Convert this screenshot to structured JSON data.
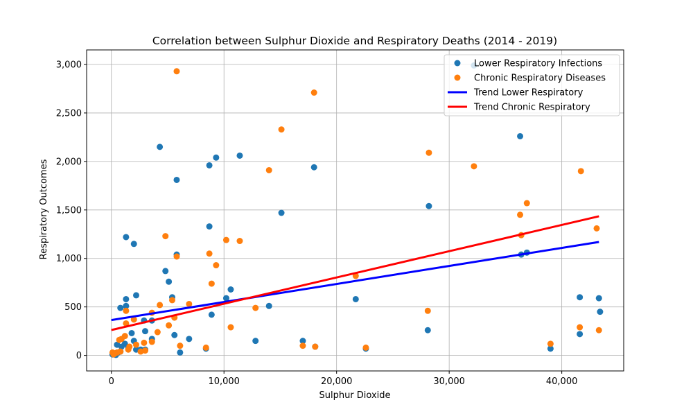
{
  "chart_data": {
    "type": "scatter",
    "title": "Correlation between Sulphur Dioxide and Respiratory Deaths (2014 - 2019)",
    "xlabel": "Sulphur Dioxide",
    "ylabel": "Respiratory Outcomes",
    "xlim": [
      -2200,
      45500
    ],
    "ylim": [
      -160,
      3150
    ],
    "xticks": [
      0,
      10000,
      20000,
      30000,
      40000
    ],
    "xtick_labels": [
      "0",
      "10,000",
      "20,000",
      "30,000",
      "40,000"
    ],
    "yticks": [
      0,
      500,
      1000,
      1500,
      2000,
      2500,
      3000
    ],
    "ytick_labels": [
      "0",
      "500",
      "1,000",
      "1,500",
      "2,000",
      "2,500",
      "3,000"
    ],
    "grid": true,
    "legend_position": "top-right",
    "series": [
      {
        "name": "Lower Respiratory Infections",
        "kind": "scatter",
        "color": "#1f77b4",
        "points": [
          [
            4300,
            2150
          ],
          [
            5800,
            1810
          ],
          [
            8700,
            1960
          ],
          [
            9300,
            2040
          ],
          [
            11400,
            2060
          ],
          [
            18000,
            1940
          ],
          [
            36300,
            2260
          ],
          [
            32200,
            2990
          ],
          [
            1300,
            1220
          ],
          [
            2000,
            1150
          ],
          [
            5800,
            1040
          ],
          [
            8700,
            1330
          ],
          [
            15100,
            1470
          ],
          [
            28200,
            1540
          ],
          [
            36400,
            1040
          ],
          [
            36900,
            1060
          ],
          [
            4800,
            870
          ],
          [
            5100,
            760
          ],
          [
            5400,
            600
          ],
          [
            10200,
            590
          ],
          [
            10600,
            680
          ],
          [
            14000,
            510
          ],
          [
            21700,
            580
          ],
          [
            41600,
            600
          ],
          [
            43300,
            590
          ],
          [
            43400,
            450
          ],
          [
            1300,
            580
          ],
          [
            1300,
            510
          ],
          [
            800,
            490
          ],
          [
            2200,
            620
          ],
          [
            8900,
            420
          ],
          [
            5600,
            210
          ],
          [
            6900,
            170
          ],
          [
            12800,
            150
          ],
          [
            17000,
            150
          ],
          [
            18100,
            90
          ],
          [
            22600,
            70
          ],
          [
            28100,
            260
          ],
          [
            39000,
            70
          ],
          [
            41600,
            220
          ],
          [
            6100,
            30
          ],
          [
            8400,
            70
          ],
          [
            2900,
            360
          ],
          [
            3600,
            360
          ],
          [
            1800,
            230
          ],
          [
            3000,
            250
          ],
          [
            3600,
            170
          ],
          [
            2600,
            60
          ],
          [
            3000,
            60
          ],
          [
            2000,
            150
          ],
          [
            1200,
            120
          ],
          [
            500,
            110
          ],
          [
            900,
            90
          ],
          [
            1500,
            80
          ],
          [
            2200,
            60
          ],
          [
            800,
            40
          ],
          [
            300,
            20
          ],
          [
            100,
            10
          ],
          [
            600,
            30
          ],
          [
            400,
            5
          ]
        ]
      },
      {
        "name": "Chronic Respiratory Diseases",
        "kind": "scatter",
        "color": "#ff7f0e",
        "points": [
          [
            5800,
            2930
          ],
          [
            18000,
            2710
          ],
          [
            15100,
            2330
          ],
          [
            28200,
            2090
          ],
          [
            14000,
            1910
          ],
          [
            32200,
            1950
          ],
          [
            41700,
            1900
          ],
          [
            36900,
            1570
          ],
          [
            36300,
            1450
          ],
          [
            36400,
            1240
          ],
          [
            43100,
            1310
          ],
          [
            4800,
            1230
          ],
          [
            10200,
            1190
          ],
          [
            11400,
            1180
          ],
          [
            8700,
            1050
          ],
          [
            5800,
            1020
          ],
          [
            9300,
            930
          ],
          [
            8900,
            740
          ],
          [
            21700,
            820
          ],
          [
            5400,
            570
          ],
          [
            4300,
            520
          ],
          [
            6900,
            530
          ],
          [
            12800,
            490
          ],
          [
            1300,
            460
          ],
          [
            28100,
            460
          ],
          [
            2000,
            370
          ],
          [
            3600,
            440
          ],
          [
            5600,
            390
          ],
          [
            1300,
            330
          ],
          [
            5100,
            310
          ],
          [
            10600,
            290
          ],
          [
            41600,
            290
          ],
          [
            43300,
            260
          ],
          [
            4100,
            240
          ],
          [
            1200,
            200
          ],
          [
            6100,
            100
          ],
          [
            8400,
            80
          ],
          [
            17000,
            100
          ],
          [
            18100,
            90
          ],
          [
            22600,
            80
          ],
          [
            39000,
            120
          ],
          [
            3600,
            140
          ],
          [
            2900,
            130
          ],
          [
            2200,
            110
          ],
          [
            1600,
            90
          ],
          [
            3000,
            50
          ],
          [
            2600,
            40
          ],
          [
            900,
            170
          ],
          [
            700,
            160
          ],
          [
            1500,
            60
          ],
          [
            800,
            40
          ],
          [
            500,
            30
          ],
          [
            300,
            20
          ],
          [
            100,
            30
          ],
          [
            200,
            10
          ]
        ]
      },
      {
        "name": "Trend Lower Respiratory",
        "kind": "line",
        "color": "#0000ff",
        "points": [
          [
            0,
            365
          ],
          [
            43300,
            1170
          ]
        ]
      },
      {
        "name": "Trend Chronic Respiratory",
        "kind": "line",
        "color": "#ff0000",
        "points": [
          [
            0,
            262
          ],
          [
            43300,
            1435
          ]
        ]
      }
    ]
  }
}
